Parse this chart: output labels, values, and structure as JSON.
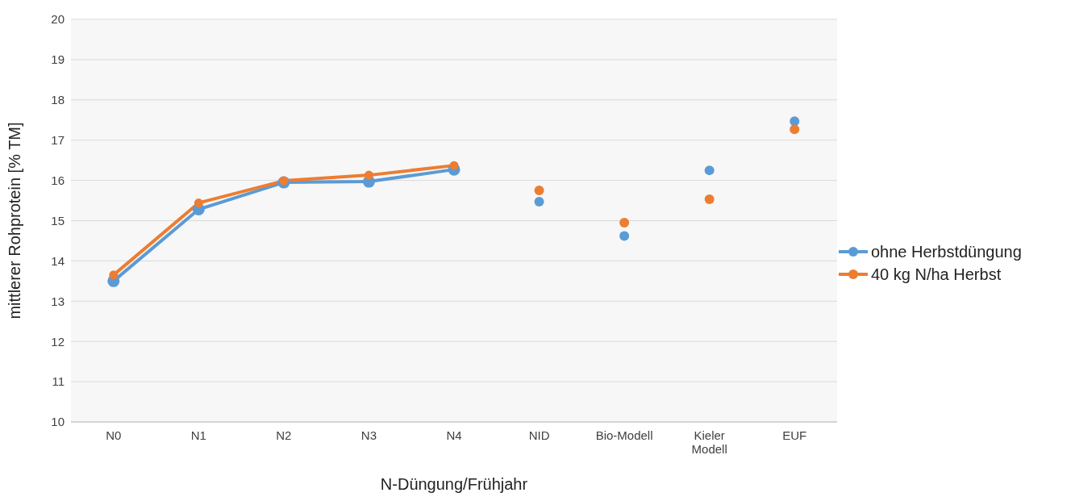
{
  "chart_data": {
    "type": "line",
    "xlabel": "N-Düngung/Frühjahr",
    "ylabel": "mittlerer Rohprotein [% TM]",
    "categories": [
      "N0",
      "N1",
      "N2",
      "N3",
      "N4",
      "NID",
      "Bio-Modell",
      "Kieler Modell",
      "EUF"
    ],
    "series": [
      {
        "name": "ohne Herbstdüngung",
        "color": "#5b9bd5",
        "values": [
          13.5,
          15.28,
          15.95,
          15.97,
          16.27,
          null,
          null,
          null,
          null
        ]
      },
      {
        "name": "40 kg N/ha Herbst",
        "color": "#ed7d31",
        "values": [
          13.65,
          15.44,
          15.99,
          16.13,
          16.37,
          null,
          null,
          null,
          null
        ]
      },
      {
        "type": "scatter",
        "color": "#5b9bd5",
        "values": [
          null,
          null,
          null,
          null,
          null,
          15.47,
          14.62,
          16.25,
          17.47
        ]
      },
      {
        "type": "scatter",
        "color": "#ed7d31",
        "values": [
          null,
          null,
          null,
          null,
          null,
          15.75,
          14.95,
          15.53,
          17.27
        ]
      }
    ],
    "ylim": [
      10,
      20
    ],
    "yticks": [
      10,
      11,
      12,
      13,
      14,
      15,
      16,
      17,
      18,
      19,
      20
    ],
    "grid": "y",
    "legend": "right",
    "marker": "circle"
  }
}
